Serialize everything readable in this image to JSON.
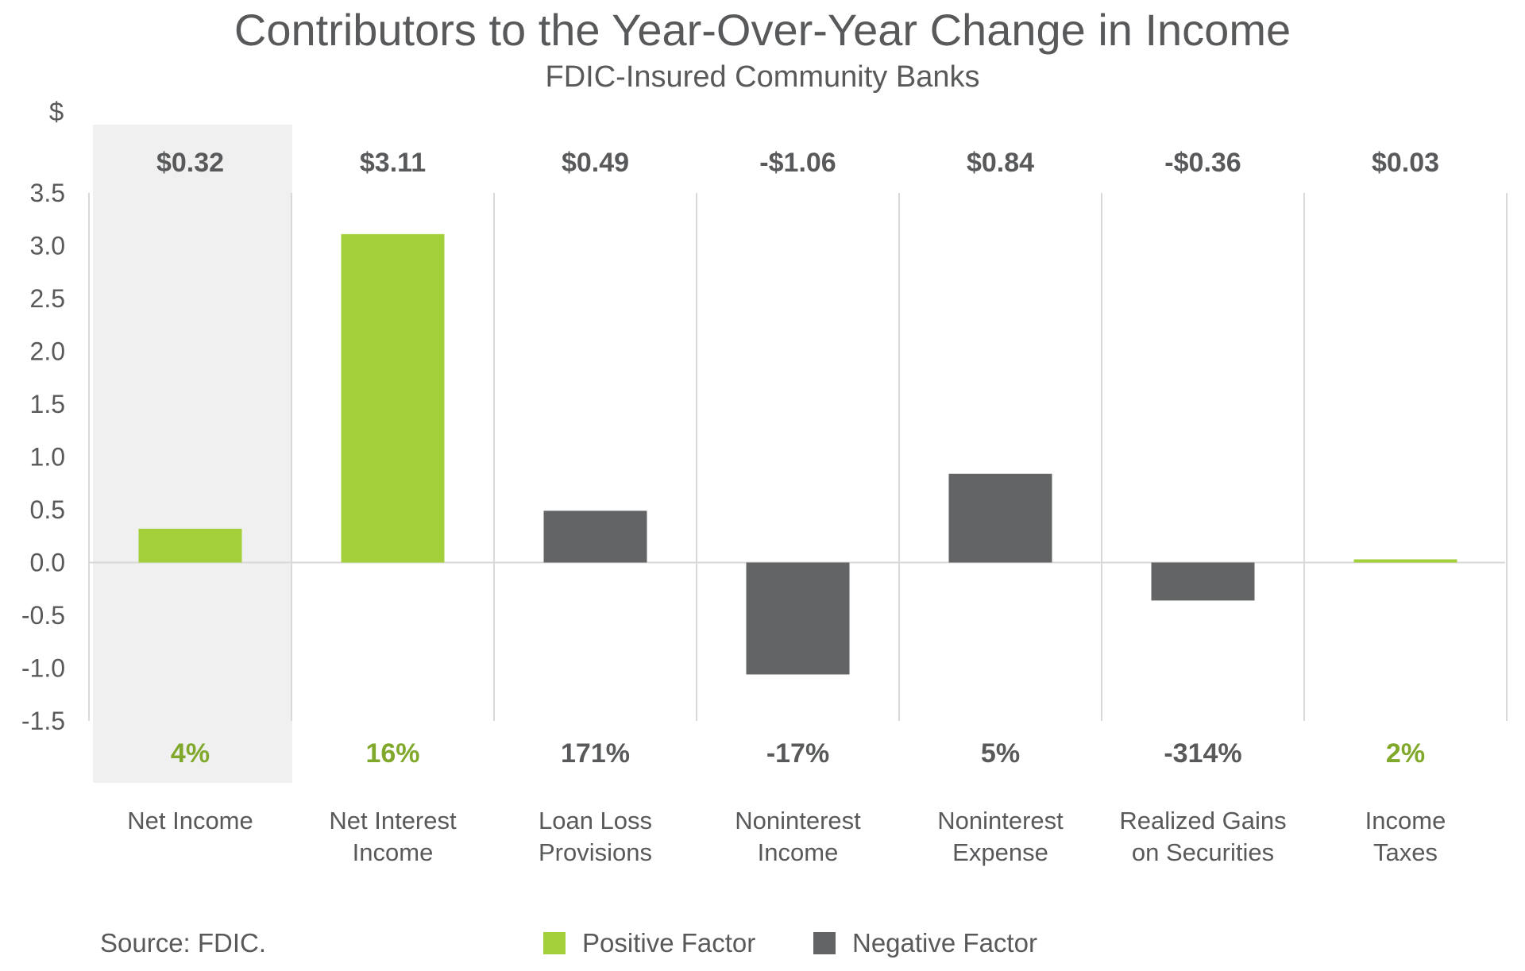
{
  "colors": {
    "positive": "#a2cf3a",
    "negative": "#636466",
    "highlight_bg": "#f0f0f0",
    "text": "#58595b",
    "gridline": "#d9d9d9",
    "positive_label": "#80a82b",
    "neutral_label": "#58595b"
  },
  "footer": {
    "source": "Source: FDIC."
  },
  "chart_data": {
    "type": "bar",
    "title": "Contributors to the Year-Over-Year Change in Income",
    "subtitle": "FDIC-Insured Community Banks",
    "ylabel": "$",
    "ylim": [
      -1.5,
      3.5
    ],
    "yticks": [
      "3.5",
      "3.0",
      "2.5",
      "2.0",
      "1.5",
      "1.0",
      "0.5",
      "0.0",
      "-0.5",
      "-1.0",
      "-1.5"
    ],
    "ytick_values": [
      3.5,
      3.0,
      2.5,
      2.0,
      1.5,
      1.0,
      0.5,
      0.0,
      -0.5,
      -1.0,
      -1.5
    ],
    "grid": false,
    "highlighted_category": "Net Income",
    "categories": [
      [
        "Net Income"
      ],
      [
        "Net Interest",
        "Income"
      ],
      [
        "Loan Loss",
        "Provisions"
      ],
      [
        "Noninterest",
        "Income"
      ],
      [
        "Noninterest",
        "Expense"
      ],
      [
        "Realized Gains",
        "on Securities"
      ],
      [
        "Income",
        "Taxes"
      ]
    ],
    "values": [
      0.32,
      3.11,
      0.49,
      -1.06,
      0.84,
      -0.36,
      0.03
    ],
    "factor": [
      "positive",
      "positive",
      "negative",
      "negative",
      "negative",
      "negative",
      "positive"
    ],
    "value_labels": [
      "$0.32",
      "$3.11",
      "$0.49",
      "-$1.06",
      "$0.84",
      "-$0.36",
      "$0.03"
    ],
    "pct_labels": [
      "4%",
      "16%",
      "171%",
      "-17%",
      "5%",
      "-314%",
      "2%"
    ],
    "legend": [
      {
        "name": "Positive Factor",
        "factor": "positive"
      },
      {
        "name": "Negative Factor",
        "factor": "negative"
      }
    ],
    "legend_position": "bottom"
  }
}
